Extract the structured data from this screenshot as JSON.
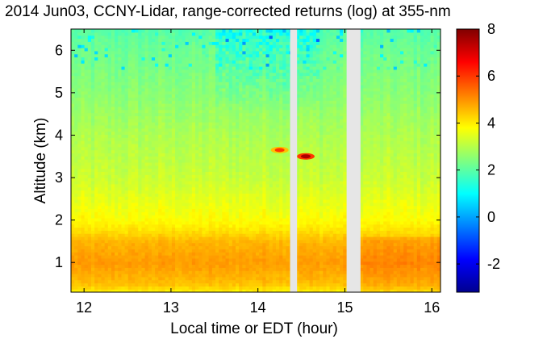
{
  "chart_data": {
    "type": "heatmap",
    "title": "2014 Jun03, CCNY-Lidar, range-corrected returns (log) at 355-nm",
    "xlabel": "Local time or EDT (hour)",
    "ylabel": "Altitude (km)",
    "xlim": [
      11.85,
      16.1
    ],
    "ylim": [
      0.3,
      6.5
    ],
    "xticks": [
      12,
      13,
      14,
      15,
      16
    ],
    "yticks": [
      1,
      2,
      3,
      4,
      5,
      6
    ],
    "colorbar": {
      "colormap": "jet",
      "range": [
        -3.2,
        8
      ],
      "ticks": [
        -2,
        0,
        2,
        4,
        6,
        8
      ]
    },
    "data_gaps_hours": [
      [
        14.37,
        14.45
      ],
      [
        15.02,
        15.18
      ]
    ],
    "z_profile_by_altitude": {
      "altitude_km": [
        0.3,
        0.5,
        1.0,
        1.5,
        1.7,
        2.0,
        3.0,
        4.0,
        5.0,
        6.0,
        6.5
      ],
      "log_return": [
        3.9,
        4.5,
        4.9,
        4.6,
        4.2,
        3.8,
        3.2,
        2.9,
        2.5,
        2.2,
        1.9
      ]
    },
    "cloud_features": [
      {
        "time_hour": 14.25,
        "altitude_km": 3.65,
        "value": 6.0
      },
      {
        "time_hour": 14.55,
        "altitude_km": 3.5,
        "value": 7.5
      }
    ]
  }
}
